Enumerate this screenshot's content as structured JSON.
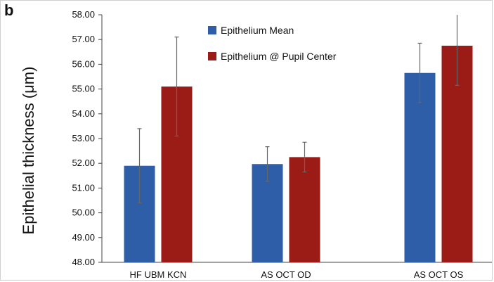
{
  "panel_label": "b",
  "chart_data": {
    "type": "bar",
    "categories": [
      "HF UBM KCN",
      "AS OCT OD",
      "AS OCT OS"
    ],
    "series": [
      {
        "name": "Epithelium Mean",
        "color": "#2e5ea8",
        "values": [
          51.9,
          51.97,
          55.65
        ],
        "error": [
          1.5,
          0.7,
          1.2
        ]
      },
      {
        "name": "Epithelium @ Pupil Center",
        "color": "#9b1b17",
        "values": [
          55.1,
          52.25,
          56.75
        ],
        "error": [
          2.0,
          0.6,
          1.6
        ]
      }
    ],
    "ylabel": "Epithelial thickness (μm)",
    "xlabel": "",
    "ylim": [
      48.0,
      58.0
    ],
    "yticks": [
      "48.00",
      "49.00",
      "50.00",
      "51.00",
      "52.00",
      "53.00",
      "54.00",
      "55.00",
      "56.00",
      "57.00",
      "58.00"
    ],
    "grid": false,
    "legend": "top-center"
  }
}
